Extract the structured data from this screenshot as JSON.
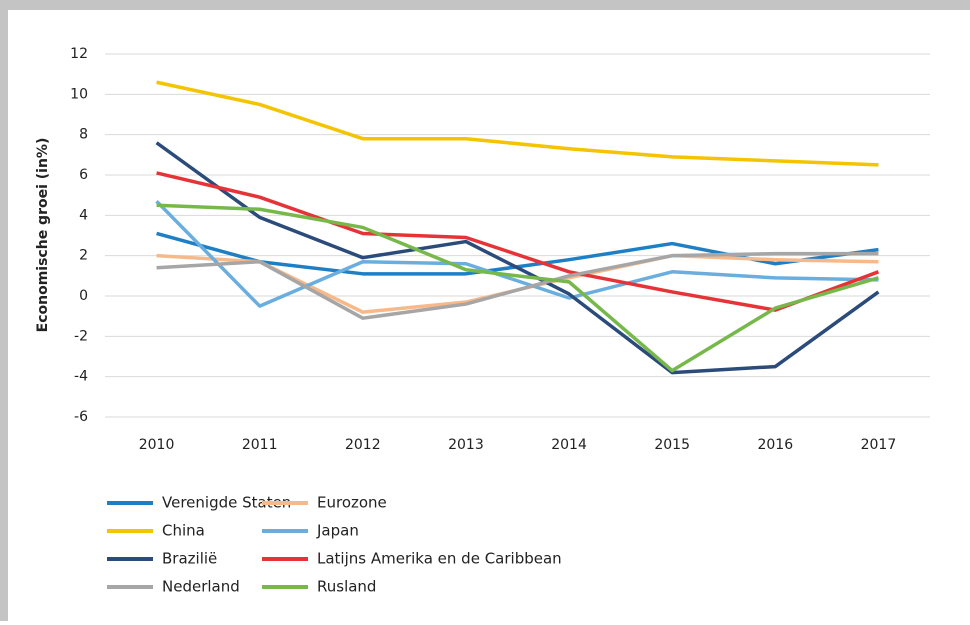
{
  "chart_data": {
    "type": "line",
    "y_label": "Economische groei (in%)",
    "categories": [
      "2010",
      "2011",
      "2012",
      "2013",
      "2014",
      "2015",
      "2016",
      "2017"
    ],
    "series": [
      {
        "name": "Verenigde Staten",
        "color": "#1f7fc4",
        "values": [
          3.1,
          1.7,
          1.1,
          1.1,
          1.8,
          2.6,
          1.6,
          2.3
        ]
      },
      {
        "name": "Eurozone",
        "color": "#f8b98a",
        "values": [
          2.0,
          1.7,
          -0.8,
          -0.3,
          0.9,
          2.0,
          1.8,
          1.7
        ]
      },
      {
        "name": "China",
        "color": "#f5c400",
        "values": [
          10.6,
          9.5,
          7.8,
          7.8,
          7.3,
          6.9,
          6.7,
          6.5
        ]
      },
      {
        "name": "Japan",
        "color": "#6aaee0",
        "values": [
          4.7,
          -0.5,
          1.7,
          1.6,
          -0.1,
          1.2,
          0.9,
          0.8
        ]
      },
      {
        "name": "Brazilië",
        "color": "#2b4b7a",
        "values": [
          7.6,
          3.9,
          1.9,
          2.7,
          0.1,
          -3.8,
          -3.5,
          0.2
        ]
      },
      {
        "name": "Latijns Amerika en de Caribbean",
        "color": "#e63338",
        "values": [
          6.1,
          4.9,
          3.1,
          2.9,
          1.2,
          0.2,
          -0.7,
          1.2
        ]
      },
      {
        "name": "Nederland",
        "color": "#a6a6a6",
        "values": [
          1.4,
          1.7,
          -1.1,
          -0.4,
          1.0,
          2.0,
          2.1,
          2.1
        ]
      },
      {
        "name": "Rusland",
        "color": "#77b84b",
        "values": [
          4.5,
          4.3,
          3.4,
          1.3,
          0.7,
          -3.7,
          -0.6,
          0.9
        ]
      }
    ],
    "ylim": [
      -6,
      12
    ],
    "yticks": [
      -6,
      -4,
      -2,
      0,
      2,
      4,
      6,
      8,
      10,
      12
    ],
    "grid": true
  }
}
